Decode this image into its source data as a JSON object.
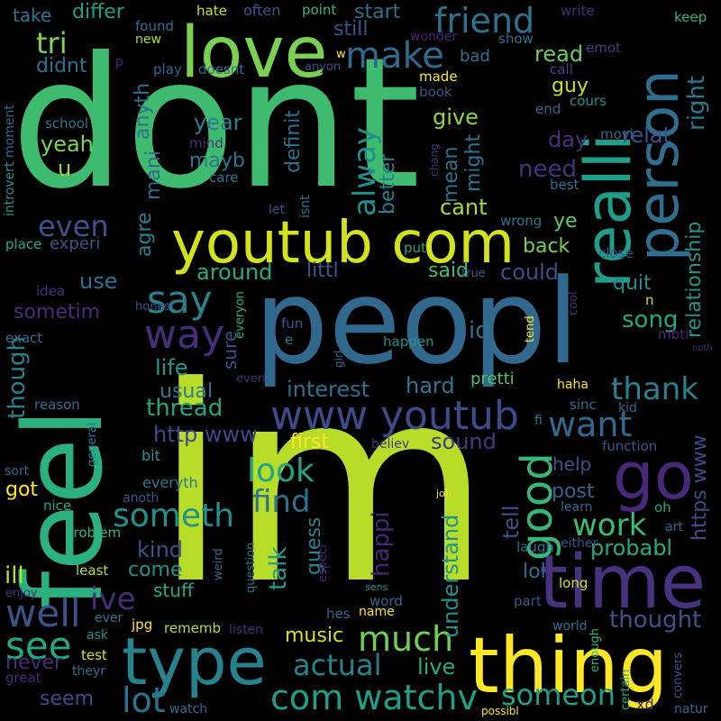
{
  "words": [
    {
      "text": "dont",
      "color": "#3fbb70"
    },
    {
      "text": "im",
      "color": "#b7dd29"
    },
    {
      "text": "peopl",
      "color": "#31688e"
    },
    {
      "text": "feel",
      "color": "#2bb07f"
    },
    {
      "text": "realli",
      "color": "#1f9e89"
    },
    {
      "text": "person",
      "color": "#2e6e8e"
    },
    {
      "text": "love",
      "color": "#7ad151"
    },
    {
      "text": "youtub com",
      "color": "#d2e21b"
    },
    {
      "text": "thing",
      "color": "#fde725"
    },
    {
      "text": "type",
      "color": "#26828e"
    },
    {
      "text": "time",
      "color": "#46327e"
    },
    {
      "text": "go",
      "color": "#482878"
    },
    {
      "text": "www youtub",
      "color": "#3e4a89"
    },
    {
      "text": "com watchv",
      "color": "#1f9e89"
    },
    {
      "text": "make",
      "color": "#31688e"
    },
    {
      "text": "friend",
      "color": "#2c728e"
    },
    {
      "text": "say",
      "color": "#25848e"
    },
    {
      "text": "way",
      "color": "#472d7b"
    },
    {
      "text": "good",
      "color": "#35b779"
    },
    {
      "text": "want",
      "color": "#31688e"
    },
    {
      "text": "thank",
      "color": "#26828e"
    },
    {
      "text": "well",
      "color": "#3b528b"
    },
    {
      "text": "see",
      "color": "#22a884"
    },
    {
      "text": "much",
      "color": "#6ece58"
    },
    {
      "text": "lot",
      "color": "#2c728e"
    },
    {
      "text": "someon",
      "color": "#1f9e89"
    },
    {
      "text": "work",
      "color": "#3fbc73"
    },
    {
      "text": "someth",
      "color": "#21918c"
    },
    {
      "text": "look",
      "color": "#20a486"
    },
    {
      "text": "find",
      "color": "#2c728e"
    },
    {
      "text": "even",
      "color": "#3b528b"
    },
    {
      "text": "alway",
      "color": "#21908d"
    },
    {
      "text": "right",
      "color": "#2a788e"
    },
    {
      "text": "ive",
      "color": "#472c7a"
    },
    {
      "text": "actual",
      "color": "#25838e"
    },
    {
      "text": "thought",
      "color": "#3b528b"
    },
    {
      "text": "tri",
      "color": "#84d44b"
    },
    {
      "text": "differ",
      "color": "#1fa188"
    },
    {
      "text": "take",
      "color": "#2a778e"
    },
    {
      "text": "still",
      "color": "#3a548c"
    },
    {
      "text": "start",
      "color": "#2d708e"
    },
    {
      "text": "read",
      "color": "#6ccd5a"
    },
    {
      "text": "guy",
      "color": "#c2df23"
    },
    {
      "text": "give",
      "color": "#90d743"
    },
    {
      "text": "mean",
      "color": "#2c738e"
    },
    {
      "text": "might",
      "color": "#2a788e"
    },
    {
      "text": "day",
      "color": "#472f7d"
    },
    {
      "text": "relat",
      "color": "#3b528b"
    },
    {
      "text": "need",
      "color": "#46327e"
    },
    {
      "text": "better",
      "color": "#26818e"
    },
    {
      "text": "cant",
      "color": "#a5db36"
    },
    {
      "text": "ye",
      "color": "#5ec962"
    },
    {
      "text": "back",
      "color": "#75d054"
    },
    {
      "text": "could",
      "color": "#3e4c8a"
    },
    {
      "text": "quit",
      "color": "#228d8d"
    },
    {
      "text": "relationship",
      "color": "#1f958b"
    },
    {
      "text": "song",
      "color": "#22a785"
    },
    {
      "text": "id",
      "color": "#2f6c8e"
    },
    {
      "text": "said",
      "color": "#40bd72"
    },
    {
      "text": "littl",
      "color": "#375a8c"
    },
    {
      "text": "around",
      "color": "#25ac82"
    },
    {
      "text": "sure",
      "color": "#3c4f8a"
    },
    {
      "text": "life",
      "color": "#1f998a"
    },
    {
      "text": "usual",
      "color": "#287c8e"
    },
    {
      "text": "thread",
      "color": "#21a685"
    },
    {
      "text": "interest",
      "color": "#2e6f8e"
    },
    {
      "text": "hard",
      "color": "#2a788e"
    },
    {
      "text": "pretti",
      "color": "#4ac16d"
    },
    {
      "text": "http www",
      "color": "#3e4989"
    },
    {
      "text": "first",
      "color": "#fde725"
    },
    {
      "text": "sound",
      "color": "#443a83"
    },
    {
      "text": "https www",
      "color": "#3e4a89"
    },
    {
      "text": "help",
      "color": "#3b528b"
    },
    {
      "text": "post",
      "color": "#33638d"
    },
    {
      "text": "probabl",
      "color": "#25ab82"
    },
    {
      "text": "tell",
      "color": "#3b528b"
    },
    {
      "text": "understand",
      "color": "#21918c"
    },
    {
      "text": "happi",
      "color": "#482475"
    },
    {
      "text": "guess",
      "color": "#25848e"
    },
    {
      "text": "talk",
      "color": "#1f9e89"
    },
    {
      "text": "kind",
      "color": "#3b528b"
    },
    {
      "text": "come",
      "color": "#21918c"
    },
    {
      "text": "stuff",
      "color": "#22a884"
    },
    {
      "text": "lol",
      "color": "#2d708e"
    },
    {
      "text": "ill",
      "color": "#bddf26"
    },
    {
      "text": "music",
      "color": "#d8e219"
    },
    {
      "text": "live",
      "color": "#25ac82"
    },
    {
      "text": "seem",
      "color": "#3e4a89"
    },
    {
      "text": "never",
      "color": "#472a7a"
    },
    {
      "text": "got",
      "color": "#fde725"
    },
    {
      "text": "use",
      "color": "#2d708e"
    },
    {
      "text": "sometim",
      "color": "#472d7b"
    },
    {
      "text": "experi",
      "color": "#3b528b"
    },
    {
      "text": "agre",
      "color": "#26828e"
    },
    {
      "text": "mani",
      "color": "#31688e"
    },
    {
      "text": "anyth",
      "color": "#2c728e"
    },
    {
      "text": "year",
      "color": "#27808e"
    },
    {
      "text": "mayb",
      "color": "#2a788e"
    },
    {
      "text": "definit",
      "color": "#2d718e"
    },
    {
      "text": "yeah",
      "color": "#7fd34e"
    },
    {
      "text": "u",
      "color": "#9bd93c"
    },
    {
      "text": "didnt",
      "color": "#2d708e"
    },
    {
      "text": "though",
      "color": "#26828e"
    },
    {
      "text": "introvert",
      "color": "#21918c"
    },
    {
      "text": "moment",
      "color": "#31688e"
    },
    {
      "text": "school",
      "color": "#2a788e"
    },
    {
      "text": "found",
      "color": "#2d708e"
    },
    {
      "text": "new",
      "color": "#b5de2b"
    },
    {
      "text": "hate",
      "color": "#c8e020"
    },
    {
      "text": "often",
      "color": "#3b528b"
    },
    {
      "text": "point",
      "color": "#35b779"
    },
    {
      "text": "write",
      "color": "#472c7a"
    },
    {
      "text": "keep",
      "color": "#2fb47c"
    },
    {
      "text": "show",
      "color": "#2c728e"
    },
    {
      "text": "wonder",
      "color": "#482475"
    },
    {
      "text": "emot",
      "color": "#453781"
    },
    {
      "text": "call",
      "color": "#414487"
    },
    {
      "text": "play",
      "color": "#31688e"
    },
    {
      "text": "doesnt",
      "color": "#2e6e8e"
    },
    {
      "text": "anyon",
      "color": "#3b528b"
    },
    {
      "text": "bad",
      "color": "#2c728e"
    },
    {
      "text": "made",
      "color": "#fde725"
    },
    {
      "text": "book",
      "color": "#3b528b"
    },
    {
      "text": "cours",
      "color": "#21918c"
    },
    {
      "text": "end",
      "color": "#31688e"
    },
    {
      "text": "movi",
      "color": "#31688e"
    },
    {
      "text": "chang",
      "color": "#46327e"
    },
    {
      "text": "mind",
      "color": "#472d7b"
    },
    {
      "text": "care",
      "color": "#2a788e"
    },
    {
      "text": "best",
      "color": "#2d708e"
    },
    {
      "text": "isnt",
      "color": "#2a788e"
    },
    {
      "text": "let",
      "color": "#3b528b"
    },
    {
      "text": "wrong",
      "color": "#2a788e"
    },
    {
      "text": "put",
      "color": "#22a884"
    },
    {
      "text": "close",
      "color": "#3b528b"
    },
    {
      "text": "place",
      "color": "#22a884"
    },
    {
      "text": "idea",
      "color": "#46327e"
    },
    {
      "text": "true",
      "color": "#3b528b"
    },
    {
      "text": "n",
      "color": "#d8e219"
    },
    {
      "text": "cool",
      "color": "#472d7b"
    },
    {
      "text": "honest",
      "color": "#3b528b"
    },
    {
      "text": "everyon",
      "color": "#2fb47c"
    },
    {
      "text": "fun",
      "color": "#3b528b"
    },
    {
      "text": "e",
      "color": "#26828e"
    },
    {
      "text": "tend",
      "color": "#fde725"
    },
    {
      "text": "mbti",
      "color": "#482475"
    },
    {
      "text": "noth",
      "color": "#482878"
    },
    {
      "text": "exact",
      "color": "#2d708e"
    },
    {
      "text": "happen",
      "color": "#21918c"
    },
    {
      "text": "girl",
      "color": "#31688e"
    },
    {
      "text": "reason",
      "color": "#2d708e"
    },
    {
      "text": "everi",
      "color": "#472d7b"
    },
    {
      "text": "haha",
      "color": "#fde725"
    },
    {
      "text": "kid",
      "color": "#31688e"
    },
    {
      "text": "sinc",
      "color": "#2d708e"
    },
    {
      "text": "fi",
      "color": "#2a788e"
    },
    {
      "text": "believ",
      "color": "#46327e"
    },
    {
      "text": "function",
      "color": "#3b528b"
    },
    {
      "text": "general",
      "color": "#2a788e"
    },
    {
      "text": "bit",
      "color": "#21918c"
    },
    {
      "text": "sort",
      "color": "#31688e"
    },
    {
      "text": "everyth",
      "color": "#2a788e"
    },
    {
      "text": "anoth",
      "color": "#3b528b"
    },
    {
      "text": "nice",
      "color": "#22a884"
    },
    {
      "text": "job",
      "color": "#fde725"
    },
    {
      "text": "learn",
      "color": "#31688e"
    },
    {
      "text": "oh",
      "color": "#22a884"
    },
    {
      "text": "art",
      "color": "#31688e"
    },
    {
      "text": "problem",
      "color": "#2fb47c"
    },
    {
      "text": "laugh",
      "color": "#2d708e"
    },
    {
      "text": "either",
      "color": "#3b528b"
    },
    {
      "text": "weird",
      "color": "#31688e"
    },
    {
      "text": "question",
      "color": "#2a788e"
    },
    {
      "text": "especi",
      "color": "#482475"
    },
    {
      "text": "least",
      "color": "#b5de2b"
    },
    {
      "text": "sens",
      "color": "#21918c"
    },
    {
      "text": "word",
      "color": "#31688e"
    },
    {
      "text": "part",
      "color": "#3b528b"
    },
    {
      "text": "long",
      "color": "#d8e219"
    },
    {
      "text": "enjoy",
      "color": "#46327e"
    },
    {
      "text": "ever",
      "color": "#2a788e"
    },
    {
      "text": "hes",
      "color": "#31688e"
    },
    {
      "text": "name",
      "color": "#fde725"
    },
    {
      "text": "enough",
      "color": "#2fb47c"
    },
    {
      "text": "jpg",
      "color": "#fde725"
    },
    {
      "text": "rememb",
      "color": "#b5de2b"
    },
    {
      "text": "listen",
      "color": "#482878"
    },
    {
      "text": "world",
      "color": "#2d708e"
    },
    {
      "text": "ask",
      "color": "#21918c"
    },
    {
      "text": "test",
      "color": "#d8e219"
    },
    {
      "text": "theyr",
      "color": "#31688e"
    },
    {
      "text": "great",
      "color": "#482878"
    },
    {
      "text": "watch",
      "color": "#2d708e"
    },
    {
      "text": "possibl",
      "color": "#fde725"
    },
    {
      "text": "certain",
      "color": "#22a884"
    },
    {
      "text": "convers",
      "color": "#3b528b"
    },
    {
      "text": "xd",
      "color": "#482878"
    },
    {
      "text": "natur",
      "color": "#31688e"
    },
    {
      "text": "p",
      "color": "#482475"
    },
    {
      "text": "w",
      "color": "#fde725"
    }
  ]
}
